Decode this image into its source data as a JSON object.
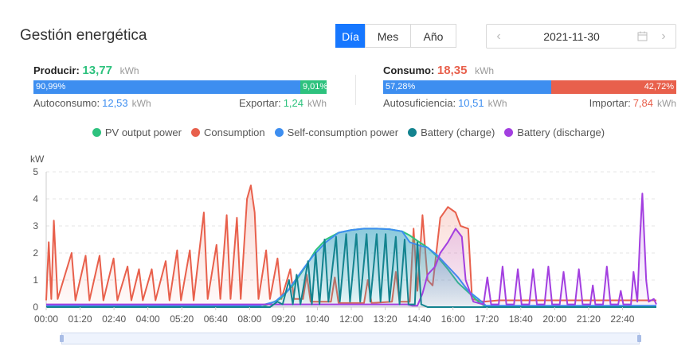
{
  "header": {
    "title": "Gestión energética",
    "periods": [
      {
        "label": "Día",
        "active": true
      },
      {
        "label": "Mes",
        "active": false
      },
      {
        "label": "Año",
        "active": false
      }
    ],
    "date": "2021-11-30"
  },
  "production": {
    "label": "Producir:",
    "value": "13,77",
    "unit": "kWh",
    "bar_left_label": "90,99%",
    "bar_right_label": "9,01%",
    "bar_left_fraction": 0.9099,
    "left_label": "Autoconsumo:",
    "left_value": "12,53",
    "left_unit": "kWh",
    "right_label": "Exportar:",
    "right_value": "1,24",
    "right_unit": "kWh"
  },
  "consumption": {
    "label": "Consumo:",
    "value": "18,35",
    "unit": "kWh",
    "bar_left_label": "57,28%",
    "bar_right_label": "42,72%",
    "bar_left_fraction": 0.5728,
    "left_label": "Autosuficiencia:",
    "left_value": "10,51",
    "left_unit": "kWh",
    "right_label": "Importar:",
    "right_value": "7,84",
    "right_unit": "kWh"
  },
  "colors": {
    "pv": "#2ec27e",
    "consumption": "#e8604c",
    "self": "#3d8ef0",
    "charge": "#13838f",
    "discharge": "#a33fe0",
    "accent": "#1677ff"
  },
  "chart_data": {
    "type": "line",
    "ylabel": "kW",
    "ylim": [
      0,
      5
    ],
    "yticks": [
      "0",
      "1",
      "2",
      "3",
      "4",
      "5"
    ],
    "xticks": [
      "00:00",
      "01:20",
      "02:40",
      "04:00",
      "05:20",
      "06:40",
      "08:00",
      "09:20",
      "10:40",
      "12:00",
      "13:20",
      "14:40",
      "16:00",
      "17:20",
      "18:40",
      "20:00",
      "21:20",
      "22:40"
    ],
    "x_range_hours": [
      0,
      24
    ],
    "grid": true,
    "legend_position": "top",
    "series": [
      {
        "name": "PV output power",
        "color_key": "pv",
        "points": [
          [
            0,
            0
          ],
          [
            8.5,
            0
          ],
          [
            9.2,
            0.3
          ],
          [
            9.7,
            0.8
          ],
          [
            10.2,
            1.5
          ],
          [
            10.6,
            2.1
          ],
          [
            11,
            2.5
          ],
          [
            11.5,
            2.75
          ],
          [
            12,
            2.85
          ],
          [
            12.5,
            2.9
          ],
          [
            13,
            2.9
          ],
          [
            13.5,
            2.88
          ],
          [
            14,
            2.8
          ],
          [
            14.3,
            2.65
          ],
          [
            14.6,
            2.45
          ],
          [
            15,
            2.2
          ],
          [
            15.4,
            1.85
          ],
          [
            15.8,
            1.4
          ],
          [
            16.2,
            0.9
          ],
          [
            16.6,
            0.55
          ],
          [
            17,
            0.2
          ],
          [
            17.3,
            0
          ],
          [
            24,
            0
          ]
        ]
      },
      {
        "name": "Consumption",
        "color_key": "consumption",
        "points": [
          [
            0,
            0.25
          ],
          [
            0.1,
            2.4
          ],
          [
            0.2,
            0.3
          ],
          [
            0.3,
            3.2
          ],
          [
            0.45,
            0.3
          ],
          [
            1,
            2
          ],
          [
            1.15,
            0.25
          ],
          [
            1.55,
            1.9
          ],
          [
            1.7,
            0.25
          ],
          [
            2.1,
            1.9
          ],
          [
            2.25,
            0.25
          ],
          [
            2.65,
            1.8
          ],
          [
            2.8,
            0.25
          ],
          [
            3.2,
            1.5
          ],
          [
            3.35,
            0.25
          ],
          [
            3.65,
            1.4
          ],
          [
            3.8,
            0.25
          ],
          [
            4.15,
            1.4
          ],
          [
            4.3,
            0.25
          ],
          [
            4.7,
            1.7
          ],
          [
            4.85,
            0.25
          ],
          [
            5.15,
            2.1
          ],
          [
            5.3,
            0.25
          ],
          [
            5.65,
            2.1
          ],
          [
            5.8,
            0.25
          ],
          [
            6.2,
            3.5
          ],
          [
            6.35,
            0.3
          ],
          [
            6.7,
            2.3
          ],
          [
            6.85,
            0.3
          ],
          [
            7.1,
            3.4
          ],
          [
            7.25,
            0.3
          ],
          [
            7.5,
            3.3
          ],
          [
            7.65,
            0.3
          ],
          [
            7.9,
            4.0
          ],
          [
            8.05,
            4.5
          ],
          [
            8.2,
            3.5
          ],
          [
            8.35,
            0.3
          ],
          [
            8.65,
            2.1
          ],
          [
            8.8,
            0.3
          ],
          [
            9.1,
            1.8
          ],
          [
            9.25,
            0.3
          ],
          [
            9.6,
            1.4
          ],
          [
            9.75,
            0.3
          ],
          [
            10.1,
            0.3
          ],
          [
            10.25,
            1.2
          ],
          [
            10.4,
            0.2
          ],
          [
            11.2,
            0.2
          ],
          [
            11.35,
            1.1
          ],
          [
            11.5,
            0.15
          ],
          [
            12.5,
            0.15
          ],
          [
            12.65,
            1.0
          ],
          [
            12.8,
            0.15
          ],
          [
            13.6,
            0.2
          ],
          [
            13.75,
            1.3
          ],
          [
            13.9,
            0.2
          ],
          [
            14.3,
            0.2
          ],
          [
            14.45,
            2.9
          ],
          [
            14.6,
            0.6
          ],
          [
            14.8,
            3.4
          ],
          [
            15.0,
            1.0
          ],
          [
            15.2,
            0.8
          ],
          [
            15.5,
            3.3
          ],
          [
            15.8,
            3.7
          ],
          [
            16.1,
            3.5
          ],
          [
            16.3,
            3.0
          ],
          [
            16.6,
            2.9
          ],
          [
            16.75,
            0.3
          ],
          [
            17.2,
            0.2
          ],
          [
            17.8,
            0.25
          ],
          [
            24,
            0.25
          ]
        ]
      },
      {
        "name": "Self-consumption power",
        "color_key": "self",
        "points": [
          [
            0,
            0.05
          ],
          [
            8.4,
            0.05
          ],
          [
            9,
            0.2
          ],
          [
            9.5,
            0.6
          ],
          [
            9.8,
            1.0
          ],
          [
            10.1,
            1.4
          ],
          [
            10.5,
            1.9
          ],
          [
            11,
            2.4
          ],
          [
            11.5,
            2.75
          ],
          [
            12,
            2.85
          ],
          [
            12.5,
            2.9
          ],
          [
            13,
            2.9
          ],
          [
            13.5,
            2.88
          ],
          [
            14,
            2.8
          ],
          [
            14.3,
            2.4
          ],
          [
            14.6,
            2.3
          ],
          [
            15,
            2.2
          ],
          [
            15.4,
            1.9
          ],
          [
            15.8,
            1.5
          ],
          [
            16.2,
            1.1
          ],
          [
            16.6,
            0.6
          ],
          [
            17,
            0.3
          ],
          [
            17.3,
            0.05
          ],
          [
            24,
            0.05
          ]
        ]
      },
      {
        "name": "Battery (charge)",
        "color_key": "charge",
        "points": [
          [
            0,
            0
          ],
          [
            8.8,
            0
          ],
          [
            9.1,
            0.2
          ],
          [
            9.3,
            0.1
          ],
          [
            9.55,
            1.0
          ],
          [
            9.7,
            0.1
          ],
          [
            9.85,
            1.2
          ],
          [
            10,
            0.1
          ],
          [
            10.3,
            1.7
          ],
          [
            10.45,
            0.1
          ],
          [
            10.6,
            2.0
          ],
          [
            10.75,
            0.1
          ],
          [
            10.95,
            2.5
          ],
          [
            11.1,
            0.2
          ],
          [
            11.4,
            2.6
          ],
          [
            11.55,
            0.2
          ],
          [
            11.8,
            2.7
          ],
          [
            11.95,
            0.2
          ],
          [
            12.2,
            2.7
          ],
          [
            12.35,
            0.2
          ],
          [
            12.6,
            2.7
          ],
          [
            12.75,
            0.2
          ],
          [
            13.0,
            2.7
          ],
          [
            13.15,
            0.2
          ],
          [
            13.35,
            2.7
          ],
          [
            13.5,
            0.2
          ],
          [
            13.75,
            2.6
          ],
          [
            13.9,
            0.1
          ],
          [
            14.1,
            2.5
          ],
          [
            14.25,
            0.1
          ],
          [
            14.5,
            0.1
          ],
          [
            14.6,
            2.4
          ],
          [
            14.75,
            0.1
          ],
          [
            15,
            0
          ],
          [
            24,
            0
          ]
        ]
      },
      {
        "name": "Battery (discharge)",
        "color_key": "discharge",
        "points": [
          [
            0,
            0.1
          ],
          [
            14.2,
            0.1
          ],
          [
            14.4,
            0.05
          ],
          [
            14.6,
            0.05
          ],
          [
            14.8,
            0.5
          ],
          [
            15,
            1.2
          ],
          [
            15.3,
            1.5
          ],
          [
            15.5,
            2.0
          ],
          [
            15.8,
            2.4
          ],
          [
            16.1,
            2.9
          ],
          [
            16.35,
            2.6
          ],
          [
            16.5,
            1.0
          ],
          [
            16.65,
            0.6
          ],
          [
            16.8,
            0.2
          ],
          [
            17.2,
            0.1
          ],
          [
            17.35,
            1.1
          ],
          [
            17.5,
            0.1
          ],
          [
            17.8,
            0.1
          ],
          [
            17.95,
            1.5
          ],
          [
            18.1,
            0.1
          ],
          [
            18.4,
            0.1
          ],
          [
            18.55,
            1.4
          ],
          [
            18.7,
            0.1
          ],
          [
            19.0,
            0.1
          ],
          [
            19.15,
            1.4
          ],
          [
            19.3,
            0.1
          ],
          [
            19.6,
            0.1
          ],
          [
            19.75,
            1.5
          ],
          [
            19.9,
            0.1
          ],
          [
            20.2,
            0.1
          ],
          [
            20.35,
            1.3
          ],
          [
            20.5,
            0.1
          ],
          [
            20.8,
            0.1
          ],
          [
            20.95,
            1.4
          ],
          [
            21.1,
            0.1
          ],
          [
            21.4,
            0.1
          ],
          [
            21.5,
            0.8
          ],
          [
            21.6,
            0.1
          ],
          [
            21.9,
            0.1
          ],
          [
            22.05,
            1.5
          ],
          [
            22.2,
            0.1
          ],
          [
            22.5,
            0.1
          ],
          [
            22.6,
            0.6
          ],
          [
            22.7,
            0.1
          ],
          [
            23.0,
            0.1
          ],
          [
            23.1,
            1.3
          ],
          [
            23.25,
            0.2
          ],
          [
            23.35,
            2.5
          ],
          [
            23.45,
            4.2
          ],
          [
            23.6,
            1.0
          ],
          [
            23.7,
            0.2
          ],
          [
            23.9,
            0.3
          ],
          [
            24,
            0.1
          ]
        ]
      }
    ]
  }
}
